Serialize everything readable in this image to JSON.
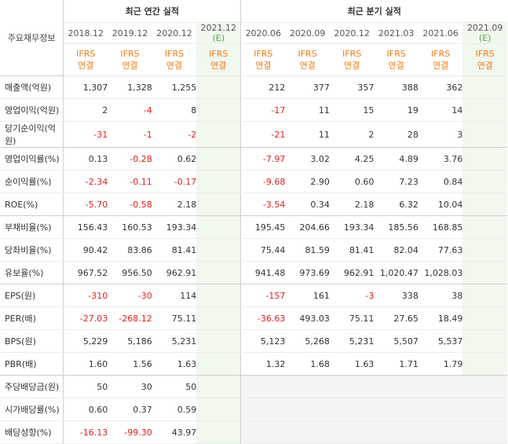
{
  "header": {
    "corner_label": "주요재무정보",
    "annual_group": "최근 연간 실적",
    "quarter_group": "최근 분기 실적",
    "annual_periods": [
      "2018.12",
      "2019.12",
      "2020.12",
      "2021.12"
    ],
    "quarter_periods": [
      "2020.06",
      "2020.09",
      "2020.12",
      "2021.03",
      "2021.06",
      "2021.09"
    ],
    "estimate_mark": "(E)",
    "ifrs_top": "IFRS",
    "ifrs_bottom": "연결"
  },
  "colors": {
    "negative": "#e0201b",
    "ifrs": "#f07d1a",
    "estimate_bg": "#f1f8ee",
    "estimate_mark": "#5aa34a"
  },
  "rows": [
    {
      "label": "매출액(억원)",
      "annual": [
        "1,307",
        "1,328",
        "1,255",
        ""
      ],
      "quarter": [
        "212",
        "377",
        "357",
        "388",
        "362",
        ""
      ]
    },
    {
      "label": "영업이익(억원)",
      "annual": [
        "2",
        "-4",
        "8",
        ""
      ],
      "quarter": [
        "-17",
        "11",
        "15",
        "19",
        "14",
        ""
      ]
    },
    {
      "label": "당기순이익(억원)",
      "annual": [
        "-31",
        "-1",
        "-2",
        ""
      ],
      "quarter": [
        "-21",
        "11",
        "2",
        "28",
        "3",
        ""
      ]
    },
    {
      "label": "영업이익률(%)",
      "annual": [
        "0.13",
        "-0.28",
        "0.62",
        ""
      ],
      "quarter": [
        "-7.97",
        "3.02",
        "4.25",
        "4.89",
        "3.76",
        ""
      ]
    },
    {
      "label": "순이익률(%)",
      "annual": [
        "-2.34",
        "-0.11",
        "-0.17",
        ""
      ],
      "quarter": [
        "-9.68",
        "2.90",
        "0.60",
        "7.23",
        "0.84",
        ""
      ]
    },
    {
      "label": "ROE(%)",
      "annual": [
        "-5.70",
        "-0.58",
        "2.18",
        ""
      ],
      "quarter": [
        "-3.54",
        "0.34",
        "2.18",
        "6.32",
        "10.04",
        ""
      ]
    },
    {
      "label": "부채비율(%)",
      "annual": [
        "156.43",
        "160.53",
        "193.34",
        ""
      ],
      "quarter": [
        "195.45",
        "204.66",
        "193.34",
        "185.56",
        "168.85",
        ""
      ]
    },
    {
      "label": "당좌비율(%)",
      "annual": [
        "90.42",
        "83.86",
        "81.41",
        ""
      ],
      "quarter": [
        "75.44",
        "81.59",
        "81.41",
        "82.04",
        "77.63",
        ""
      ]
    },
    {
      "label": "유보율(%)",
      "annual": [
        "967.52",
        "956.50",
        "962.91",
        ""
      ],
      "quarter": [
        "941.48",
        "973.69",
        "962.91",
        "1,020.47",
        "1,028.03",
        ""
      ]
    },
    {
      "label": "EPS(원)",
      "annual": [
        "-310",
        "-30",
        "114",
        ""
      ],
      "quarter": [
        "-157",
        "161",
        "-3",
        "338",
        "38",
        ""
      ]
    },
    {
      "label": "PER(배)",
      "annual": [
        "-27.03",
        "-268.12",
        "75.11",
        ""
      ],
      "quarter": [
        "-36.63",
        "493.03",
        "75.11",
        "27.65",
        "18.49",
        ""
      ]
    },
    {
      "label": "BPS(원)",
      "annual": [
        "5,229",
        "5,186",
        "5,231",
        ""
      ],
      "quarter": [
        "5,123",
        "5,268",
        "5,231",
        "5,507",
        "5,537",
        ""
      ]
    },
    {
      "label": "PBR(배)",
      "annual": [
        "1.60",
        "1.56",
        "1.63",
        ""
      ],
      "quarter": [
        "1.32",
        "1.68",
        "1.63",
        "1.71",
        "1.79",
        ""
      ]
    },
    {
      "label": "주당배당금(원)",
      "annual": [
        "50",
        "30",
        "50",
        ""
      ],
      "quarter": [
        "",
        "",
        "",
        "",
        "",
        ""
      ]
    },
    {
      "label": "시가배당률(%)",
      "annual": [
        "0.60",
        "0.37",
        "0.59",
        ""
      ],
      "quarter": [
        "",
        "",
        "",
        "",
        "",
        ""
      ]
    },
    {
      "label": "배당성향(%)",
      "annual": [
        "-16.13",
        "-99.30",
        "43.97",
        ""
      ],
      "quarter": [
        "",
        "",
        "",
        "",
        "",
        ""
      ]
    }
  ]
}
